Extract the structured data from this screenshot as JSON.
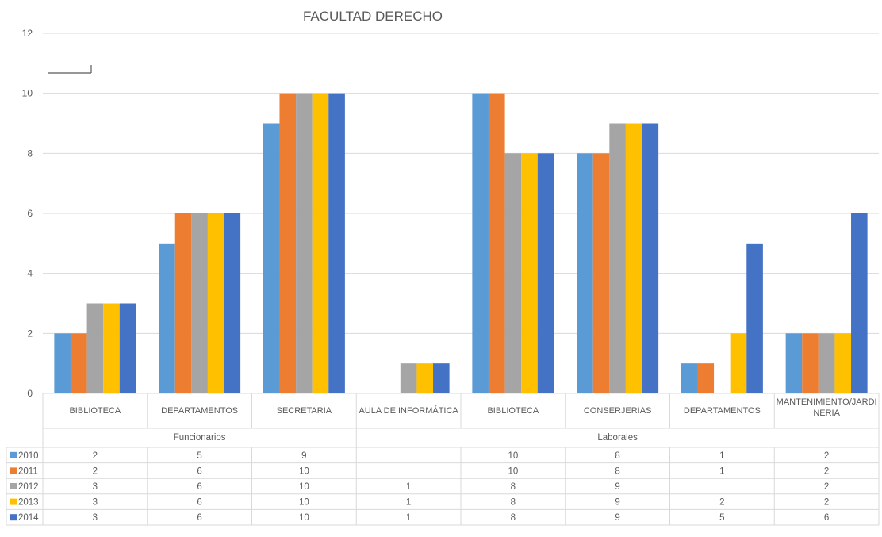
{
  "chart_data": {
    "type": "bar",
    "title": "FACULTAD DERECHO",
    "ylim": [
      0,
      12
    ],
    "yticks": [
      0,
      2,
      4,
      6,
      8,
      10,
      12
    ],
    "grid": true,
    "legend": "data-table-left",
    "groups": [
      {
        "label": "Funcionarios",
        "span": 3
      },
      {
        "label": "Laborales",
        "span": 5
      }
    ],
    "categories": [
      [
        "BIBLIOTECA"
      ],
      [
        "DEPARTAMENTOS"
      ],
      [
        "SECRETARIA"
      ],
      [
        "AULA DE INFORMÁTICA"
      ],
      [
        "BIBLIOTECA"
      ],
      [
        "CONSERJERIAS"
      ],
      [
        "DEPARTAMENTOS"
      ],
      [
        "MANTENIMIENTO/JARDI",
        "NERIA"
      ]
    ],
    "series": [
      {
        "name": "2010",
        "color": "#5B9BD5",
        "values": [
          2,
          5,
          9,
          null,
          10,
          8,
          1,
          2
        ]
      },
      {
        "name": "2011",
        "color": "#ED7D31",
        "values": [
          2,
          6,
          10,
          null,
          10,
          8,
          1,
          2
        ]
      },
      {
        "name": "2012",
        "color": "#A5A5A5",
        "values": [
          3,
          6,
          10,
          1,
          8,
          9,
          null,
          2
        ]
      },
      {
        "name": "2013",
        "color": "#FFC000",
        "values": [
          3,
          6,
          10,
          1,
          8,
          9,
          2,
          2
        ]
      },
      {
        "name": "2014",
        "color": "#4472C4",
        "values": [
          3,
          6,
          10,
          1,
          8,
          9,
          5,
          6
        ]
      }
    ]
  }
}
